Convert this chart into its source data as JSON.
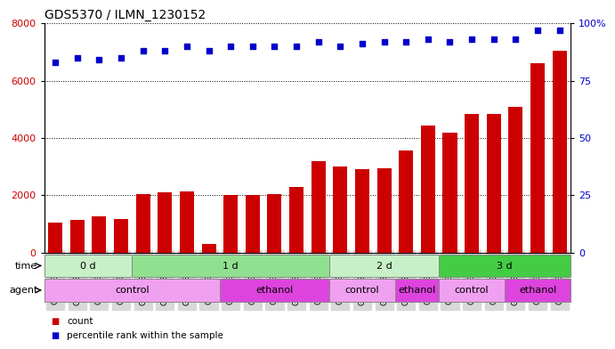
{
  "title": "GDS5370 / ILMN_1230152",
  "samples": [
    "GSM1131202",
    "GSM1131203",
    "GSM1131204",
    "GSM1131205",
    "GSM1131206",
    "GSM1131207",
    "GSM1131208",
    "GSM1131209",
    "GSM1131210",
    "GSM1131211",
    "GSM1131212",
    "GSM1131213",
    "GSM1131214",
    "GSM1131215",
    "GSM1131216",
    "GSM1131217",
    "GSM1131218",
    "GSM1131219",
    "GSM1131220",
    "GSM1131221",
    "GSM1131222",
    "GSM1131223",
    "GSM1131224",
    "GSM1131225"
  ],
  "counts": [
    1050,
    1150,
    1280,
    1180,
    2050,
    2100,
    2150,
    300,
    2020,
    2000,
    2050,
    2300,
    3200,
    3000,
    2900,
    2950,
    3550,
    4450,
    4200,
    4850,
    4850,
    5100,
    6600,
    7050
  ],
  "percentiles": [
    83,
    85,
    84,
    85,
    88,
    88,
    90,
    88,
    90,
    90,
    90,
    90,
    92,
    90,
    91,
    92,
    92,
    93,
    92,
    93,
    93,
    93,
    97,
    97
  ],
  "bar_color": "#cc0000",
  "dot_color": "#0000cc",
  "ylim_left": [
    0,
    8000
  ],
  "yticks_left": [
    0,
    2000,
    4000,
    6000,
    8000
  ],
  "ylim_right": [
    0,
    100
  ],
  "yticks_right": [
    0,
    25,
    50,
    75,
    100
  ],
  "grid_color": "#000000",
  "background_color": "#ffffff",
  "xticklabel_bg": "#d8d8d8",
  "time_row": {
    "label": "time",
    "groups": [
      {
        "text": "0 d",
        "start": 0,
        "end": 4,
        "color": "#c8f0c8"
      },
      {
        "text": "1 d",
        "start": 4,
        "end": 13,
        "color": "#90e090"
      },
      {
        "text": "2 d",
        "start": 13,
        "end": 18,
        "color": "#c8f0c8"
      },
      {
        "text": "3 d",
        "start": 18,
        "end": 24,
        "color": "#44cc44"
      }
    ]
  },
  "agent_row": {
    "label": "agent",
    "groups": [
      {
        "text": "control",
        "start": 0,
        "end": 8,
        "color": "#f0a0f0"
      },
      {
        "text": "ethanol",
        "start": 8,
        "end": 13,
        "color": "#dd44dd"
      },
      {
        "text": "control",
        "start": 13,
        "end": 16,
        "color": "#f0a0f0"
      },
      {
        "text": "ethanol",
        "start": 16,
        "end": 18,
        "color": "#dd44dd"
      },
      {
        "text": "control",
        "start": 18,
        "end": 21,
        "color": "#f0a0f0"
      },
      {
        "text": "ethanol",
        "start": 21,
        "end": 24,
        "color": "#dd44dd"
      }
    ]
  },
  "legend": [
    {
      "label": "count",
      "color": "#cc0000"
    },
    {
      "label": "percentile rank within the sample",
      "color": "#0000cc"
    }
  ]
}
